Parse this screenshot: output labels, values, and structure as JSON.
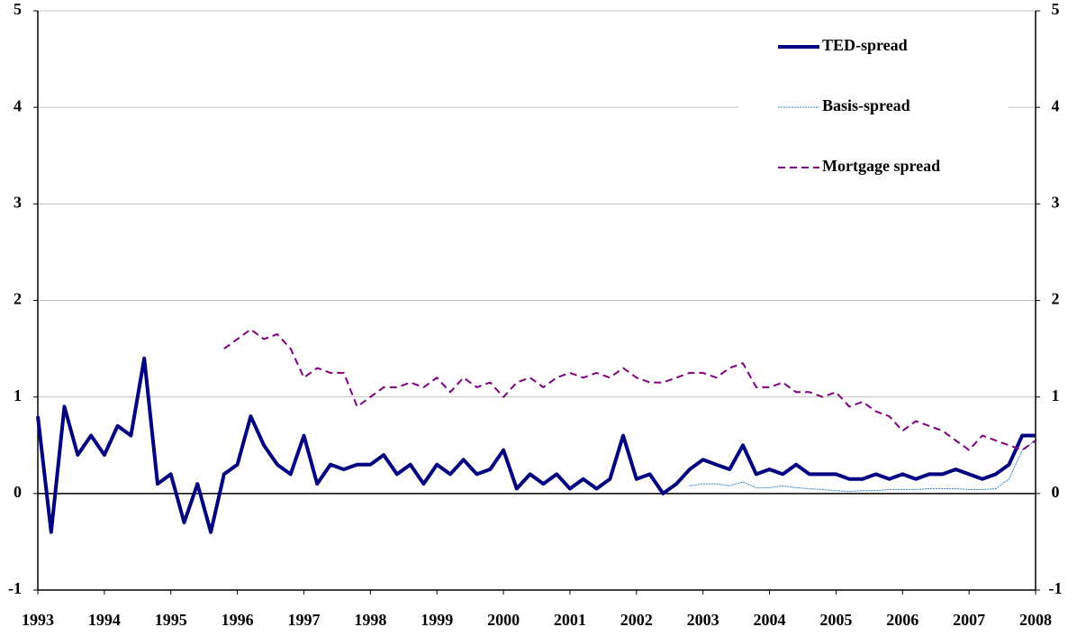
{
  "chart_data": {
    "type": "line",
    "x": [
      1993.0,
      1993.2,
      1993.4,
      1993.6,
      1993.8,
      1994.0,
      1994.2,
      1994.4,
      1994.6,
      1994.8,
      1995.0,
      1995.2,
      1995.4,
      1995.6,
      1995.8,
      1996.0,
      1996.2,
      1996.4,
      1996.6,
      1996.8,
      1997.0,
      1997.2,
      1997.4,
      1997.6,
      1997.8,
      1998.0,
      1998.2,
      1998.4,
      1998.6,
      1998.8,
      1999.0,
      1999.2,
      1999.4,
      1999.6,
      1999.8,
      2000.0,
      2000.2,
      2000.4,
      2000.6,
      2000.8,
      2001.0,
      2001.2,
      2001.4,
      2001.6,
      2001.8,
      2002.0,
      2002.2,
      2002.4,
      2002.6,
      2002.8,
      2003.0,
      2003.2,
      2003.4,
      2003.6,
      2003.8,
      2004.0,
      2004.2,
      2004.4,
      2004.6,
      2004.8,
      2005.0,
      2005.2,
      2005.4,
      2005.6,
      2005.8,
      2006.0,
      2006.2,
      2006.4,
      2006.6,
      2006.8,
      2007.0,
      2007.2,
      2007.4,
      2007.6,
      2007.8,
      2008.0
    ],
    "series": [
      {
        "name": "TED-spread",
        "color": "#000080",
        "dash": "solid",
        "width": 4,
        "values": [
          0.8,
          -0.4,
          0.9,
          0.4,
          0.6,
          0.4,
          0.7,
          0.6,
          1.4,
          0.1,
          0.2,
          -0.3,
          0.1,
          -0.4,
          0.2,
          0.3,
          0.8,
          0.5,
          0.3,
          0.2,
          0.6,
          0.1,
          0.3,
          0.25,
          0.3,
          0.3,
          0.4,
          0.2,
          0.3,
          0.1,
          0.3,
          0.2,
          0.35,
          0.2,
          0.25,
          0.45,
          0.05,
          0.2,
          0.1,
          0.2,
          0.05,
          0.15,
          0.05,
          0.15,
          0.6,
          0.15,
          0.2,
          0.0,
          0.1,
          0.25,
          0.35,
          0.3,
          0.25,
          0.5,
          0.2,
          0.25,
          0.2,
          0.3,
          0.2,
          0.2,
          0.2,
          0.15,
          0.15,
          0.2,
          0.15,
          0.2,
          0.15,
          0.2,
          0.2,
          0.25,
          0.2,
          0.15,
          0.2,
          0.3,
          0.6,
          0.6
        ]
      },
      {
        "name": "Basis-spread",
        "color": "#2f7fcf",
        "dash": "dotted",
        "width": 1,
        "values": [
          null,
          null,
          null,
          null,
          null,
          null,
          null,
          null,
          null,
          null,
          null,
          null,
          null,
          null,
          null,
          null,
          null,
          null,
          null,
          null,
          null,
          null,
          null,
          null,
          null,
          null,
          null,
          null,
          null,
          null,
          null,
          null,
          null,
          null,
          null,
          null,
          null,
          null,
          null,
          null,
          null,
          null,
          null,
          null,
          null,
          null,
          null,
          null,
          null,
          0.08,
          0.1,
          0.1,
          0.08,
          0.12,
          0.06,
          0.06,
          0.08,
          0.06,
          0.05,
          0.04,
          0.03,
          0.02,
          0.03,
          0.03,
          0.04,
          0.04,
          0.04,
          0.05,
          0.05,
          0.05,
          0.04,
          0.04,
          0.05,
          0.15,
          0.45,
          0.55
        ]
      },
      {
        "name": "Mortgage spread",
        "color": "#800080",
        "dash": "dashed",
        "width": 2,
        "values": [
          null,
          null,
          null,
          null,
          null,
          null,
          null,
          null,
          null,
          null,
          null,
          null,
          null,
          null,
          1.5,
          1.6,
          1.7,
          1.6,
          1.65,
          1.5,
          1.2,
          1.3,
          1.25,
          1.25,
          0.9,
          1.0,
          1.1,
          1.1,
          1.15,
          1.1,
          1.2,
          1.05,
          1.2,
          1.1,
          1.15,
          1.0,
          1.15,
          1.2,
          1.1,
          1.2,
          1.25,
          1.2,
          1.25,
          1.2,
          1.3,
          1.2,
          1.15,
          1.15,
          1.2,
          1.25,
          1.25,
          1.2,
          1.3,
          1.35,
          1.1,
          1.1,
          1.15,
          1.05,
          1.05,
          1.0,
          1.05,
          0.9,
          0.95,
          0.85,
          0.8,
          0.65,
          0.75,
          0.7,
          0.65,
          0.55,
          0.45,
          0.6,
          0.55,
          0.5,
          0.45,
          0.55
        ]
      }
    ],
    "xlim": [
      1993,
      2008
    ],
    "xticks": [
      1993,
      1994,
      1995,
      1996,
      1997,
      1998,
      1999,
      2000,
      2001,
      2002,
      2003,
      2004,
      2005,
      2006,
      2007,
      2008
    ],
    "ylim": [
      -1,
      5
    ],
    "yticks": [
      -1,
      0,
      1,
      2,
      3,
      4,
      5
    ],
    "y2lim": [
      -1,
      5
    ],
    "y2ticks": [
      -1,
      0,
      1,
      2,
      3,
      4,
      5
    ],
    "grid": true,
    "legend": "top-right"
  }
}
